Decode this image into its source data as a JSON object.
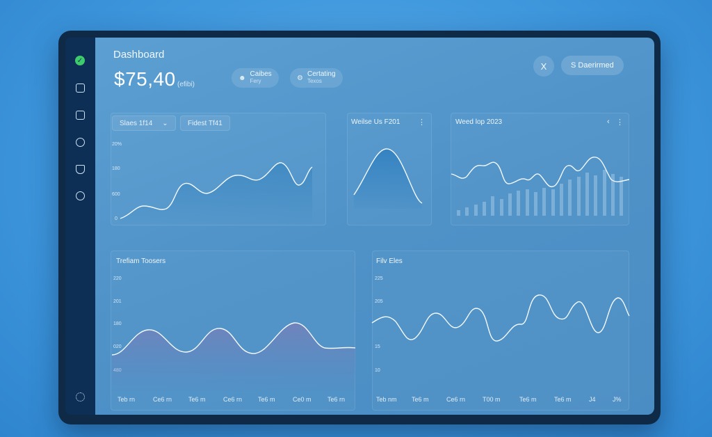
{
  "header": {
    "title": "Dashboard",
    "big_value": "$75,40",
    "big_value_sub": "(efibi)"
  },
  "chips": [
    {
      "icon": "user-icon",
      "label": "Caibes",
      "sub": "Fery"
    },
    {
      "icon": "gear-icon",
      "label": "Certating",
      "sub": "Texos"
    }
  ],
  "actions": {
    "close_label": "X",
    "primary_label": "S Daerirmed"
  },
  "filters": [
    {
      "label": "Slaes 1f14",
      "has_dropdown": true,
      "chevron": "⌄"
    },
    {
      "label": "Fidest Tf41",
      "has_dropdown": false
    }
  ],
  "panels": {
    "top_left": {
      "y_ticks": [
        "20%",
        "180",
        "600",
        "0"
      ]
    },
    "top_middle": {
      "title": "Weilse Us F201",
      "menu": "⋮"
    },
    "top_right": {
      "title": "Weed lop 2023",
      "menu": "⋮",
      "menu2": "‹"
    },
    "bottom_left": {
      "title": "Trefiam Toosers",
      "y_ticks": [
        "220",
        "201",
        "180",
        "020",
        "480"
      ],
      "x_ticks": [
        "Teb rn",
        "Ce6 rn",
        "Te6 m",
        "Ce6 rn",
        "Te6 m",
        "Ce0 m",
        "Te6 rn"
      ]
    },
    "bottom_right": {
      "title": "Filv Eles",
      "y_ticks": [
        "225",
        "205",
        "15",
        "10"
      ],
      "x_ticks": [
        "Teb nm",
        "Te6 m",
        "Ce6 rn",
        "T00 m",
        "Te6 m",
        "Te6 m",
        "J4",
        "J%"
      ]
    }
  },
  "sidebar": {
    "items": [
      {
        "icon": "check-circle-icon",
        "active": true,
        "glyph": "✓"
      },
      {
        "icon": "clipboard-icon",
        "active": false
      },
      {
        "icon": "mail-icon",
        "active": false
      },
      {
        "icon": "globe-icon",
        "active": false
      },
      {
        "icon": "bag-icon",
        "active": false
      },
      {
        "icon": "compass-icon",
        "active": false
      }
    ],
    "footer_icon": "settings-icon"
  },
  "colors": {
    "background": "#3f97dc",
    "bezel": "#0f2a47",
    "sidebar": "#0e2f55",
    "accent_green": "#3ecb6b",
    "line": "#f4f9fd"
  }
}
